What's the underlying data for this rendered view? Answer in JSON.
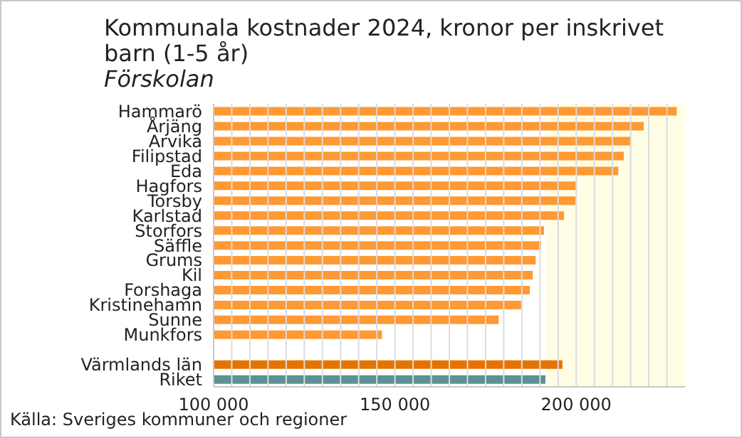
{
  "chart_data": {
    "type": "bar",
    "orientation": "horizontal",
    "title": "Kommunala kostnader 2024, kronor per inskrivet barn (1-5 år)",
    "subtitle": "Förskolan",
    "categories": [
      "Hammarö",
      "Årjäng",
      "Arvika",
      "Filipstad",
      "Eda",
      "Hagfors",
      "Torsby",
      "Karlstad",
      "Storfors",
      "Säffle",
      "Grums",
      "Kil",
      "Forshaga",
      "Kristinehamn",
      "Sunne",
      "Munkfors",
      null,
      "Värmlands län",
      "Riket"
    ],
    "values": [
      227700,
      218600,
      215100,
      213100,
      211600,
      200200,
      199800,
      196600,
      191100,
      190300,
      188800,
      188000,
      187200,
      184800,
      178600,
      146400,
      null,
      196200,
      191500
    ],
    "colors": [
      "#ff9933",
      "#ff9933",
      "#ff9933",
      "#ff9933",
      "#ff9933",
      "#ff9933",
      "#ff9933",
      "#ff9933",
      "#ff9933",
      "#ff9933",
      "#ff9933",
      "#ff9933",
      "#ff9933",
      "#ff9933",
      "#ff9933",
      "#ff9933",
      "#ff9933",
      "#e67300",
      "#5b9292"
    ],
    "xlim": [
      100000,
      230000
    ],
    "xticks": [
      {
        "value": 100000,
        "label": "100 000"
      },
      {
        "value": 105000,
        "label": null
      },
      {
        "value": 110000,
        "label": null
      },
      {
        "value": 115000,
        "label": null
      },
      {
        "value": 120000,
        "label": null
      },
      {
        "value": 125000,
        "label": null
      },
      {
        "value": 130000,
        "label": null
      },
      {
        "value": 135000,
        "label": null
      },
      {
        "value": 140000,
        "label": null
      },
      {
        "value": 145000,
        "label": null
      },
      {
        "value": 150000,
        "label": "150 000"
      },
      {
        "value": 155000,
        "label": null
      },
      {
        "value": 160000,
        "label": null
      },
      {
        "value": 165000,
        "label": null
      },
      {
        "value": 170000,
        "label": null
      },
      {
        "value": 175000,
        "label": null
      },
      {
        "value": 180000,
        "label": null
      },
      {
        "value": 185000,
        "label": null
      },
      {
        "value": 190000,
        "label": null
      },
      {
        "value": 195000,
        "label": null
      },
      {
        "value": 200000,
        "label": "200 000"
      },
      {
        "value": 205000,
        "label": null
      },
      {
        "value": 210000,
        "label": null
      },
      {
        "value": 215000,
        "label": null
      },
      {
        "value": 220000,
        "label": null
      },
      {
        "value": 225000,
        "label": null
      }
    ],
    "bands": [
      {
        "axis": "x",
        "from": 191500,
        "to": 230000,
        "color": "#fffde6"
      }
    ],
    "grid": "x",
    "annotations": [
      "Källa: Sveriges kommuner och regioner"
    ]
  }
}
